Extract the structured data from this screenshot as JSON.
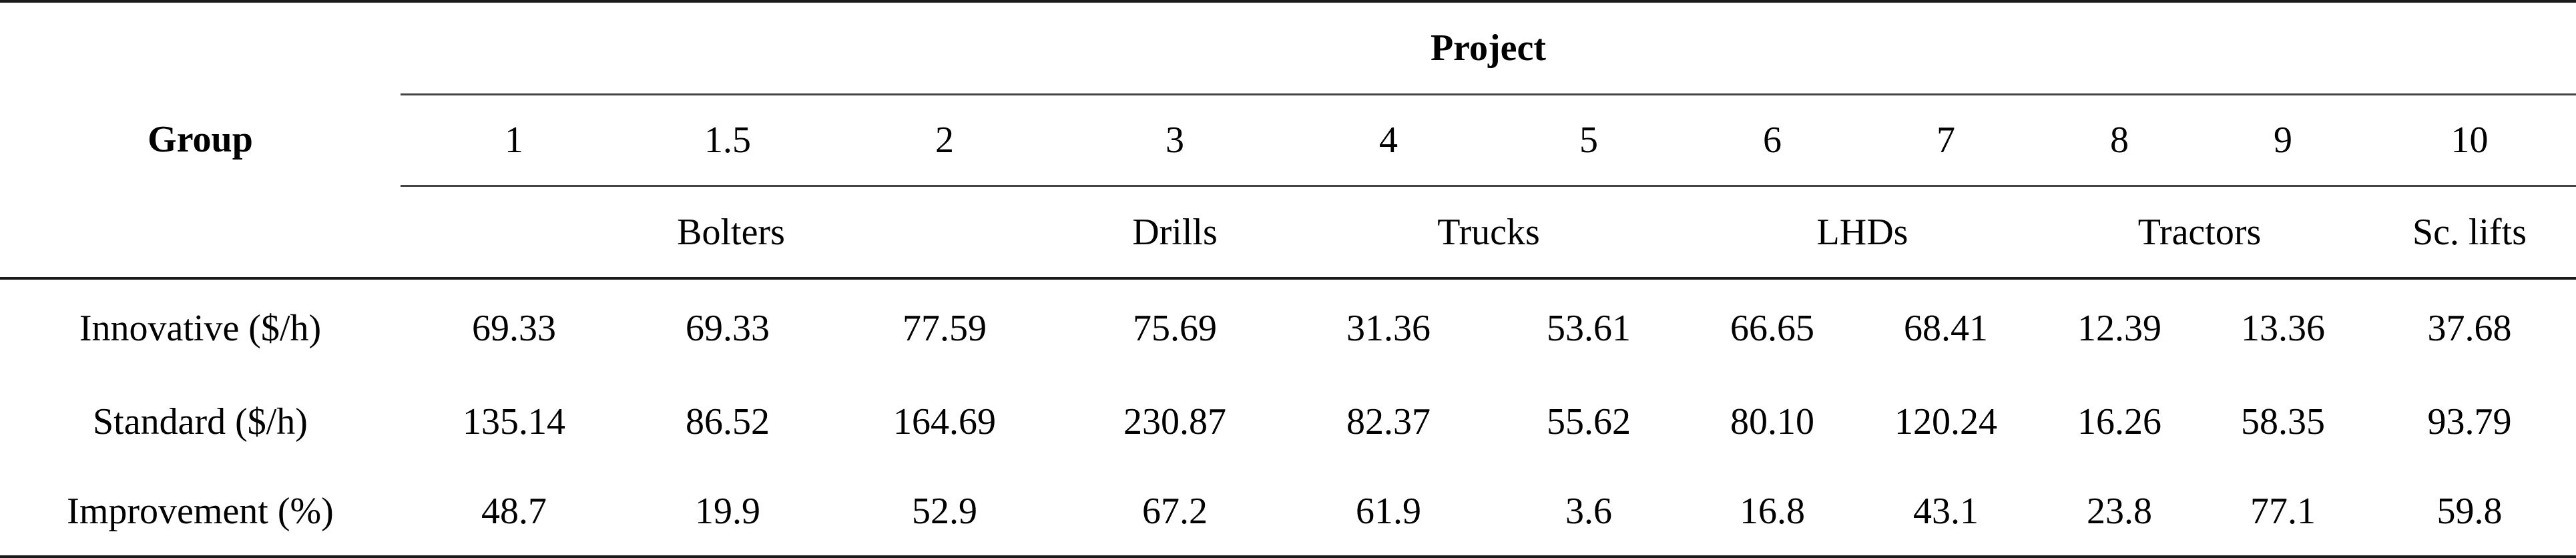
{
  "table": {
    "group_header": "Group",
    "project_header": "Project",
    "project_numbers": [
      "1",
      "1.5",
      "2",
      "3",
      "4",
      "5",
      "6",
      "7",
      "8",
      "9",
      "10"
    ],
    "equipment_groups": [
      "Bolters",
      "Drills",
      "Trucks",
      "LHDs",
      "Tractors",
      "Sc. lifts"
    ],
    "rows": [
      {
        "label": "Innovative ($/h)",
        "values": [
          "69.33",
          "69.33",
          "77.59",
          "75.69",
          "31.36",
          "53.61",
          "66.65",
          "68.41",
          "12.39",
          "13.36",
          "37.68"
        ]
      },
      {
        "label": "Standard ($/h)",
        "values": [
          "135.14",
          "86.52",
          "164.69",
          "230.87",
          "82.37",
          "55.62",
          "80.10",
          "120.24",
          "16.26",
          "58.35",
          "93.79"
        ]
      },
      {
        "label": "Improvement (%)",
        "values": [
          "48.7",
          "19.9",
          "52.9",
          "67.2",
          "61.9",
          "3.6",
          "16.8",
          "43.1",
          "23.8",
          "77.1",
          "59.8"
        ]
      }
    ]
  }
}
